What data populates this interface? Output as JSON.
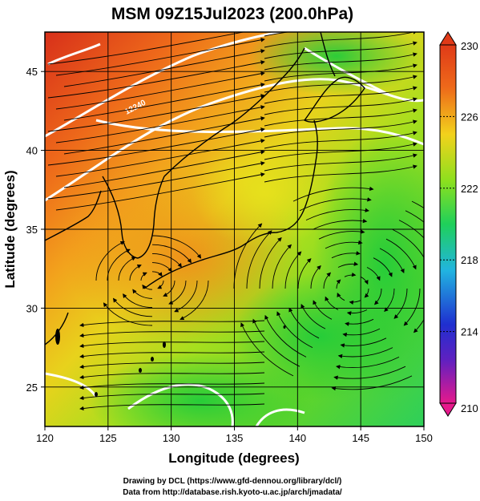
{
  "title": "MSM 09Z15Jul2023 (200.0hPa)",
  "map": {
    "xlabel": "Longitude (degrees)",
    "ylabel": "Latitude  (degrees)",
    "x_ticks": [
      "120",
      "125",
      "130",
      "135",
      "140",
      "145",
      "150"
    ],
    "y_ticks": [
      "25",
      "30",
      "35",
      "40",
      "45"
    ],
    "x_range": [
      120,
      150
    ],
    "y_range": [
      22.5,
      47.5
    ],
    "contour_label": "12240",
    "grid": true
  },
  "colorbar": {
    "ticks": [
      "230",
      "226",
      "222",
      "218",
      "214",
      "210"
    ],
    "range": [
      210,
      230
    ],
    "colors": [
      "#e6198c",
      "#1f2fd0",
      "#21b4e0",
      "#1fd05a",
      "#8ce01e",
      "#f2d21c",
      "#ee6a1a",
      "#e03a18"
    ]
  },
  "credits": {
    "line1": "Drawing by DCL (https://www.gfd-dennou.org/library/dcl/)",
    "line2": "Data from http://database.rish.kyoto-u.ac.jp/arch/jmadata/"
  }
}
